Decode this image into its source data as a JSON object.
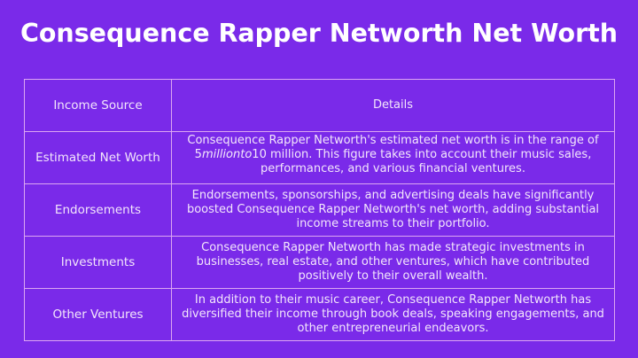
{
  "title": "Consequence Rapper Networth Net Worth",
  "table": {
    "headers": [
      "Income Source",
      "Details"
    ],
    "rows": [
      {
        "source": "Estimated Net Worth",
        "details_pre": "Consequence Rapper Networth's estimated net worth is in the range of 5",
        "details_italic": "millionto",
        "details_post": "10 million. This figure takes into account their music sales, performances, and various financial ventures."
      },
      {
        "source": "Endorsements",
        "details": "Endorsements, sponsorships, and advertising deals have significantly boosted Consequence Rapper Networth's net worth, adding substantial income streams to their portfolio."
      },
      {
        "source": "Investments",
        "details": "Consequence Rapper Networth has made strategic investments in businesses, real estate, and other ventures, which have contributed positively to their overall wealth."
      },
      {
        "source": "Other Ventures",
        "details": "In addition to their music career, Consequence Rapper Networth has diversified their income through book deals, speaking engagements, and other entrepreneurial endeavors."
      }
    ]
  },
  "colors": {
    "background": "#7a2ae9",
    "border": "#dca6f2",
    "text": "#f3e6fb"
  }
}
